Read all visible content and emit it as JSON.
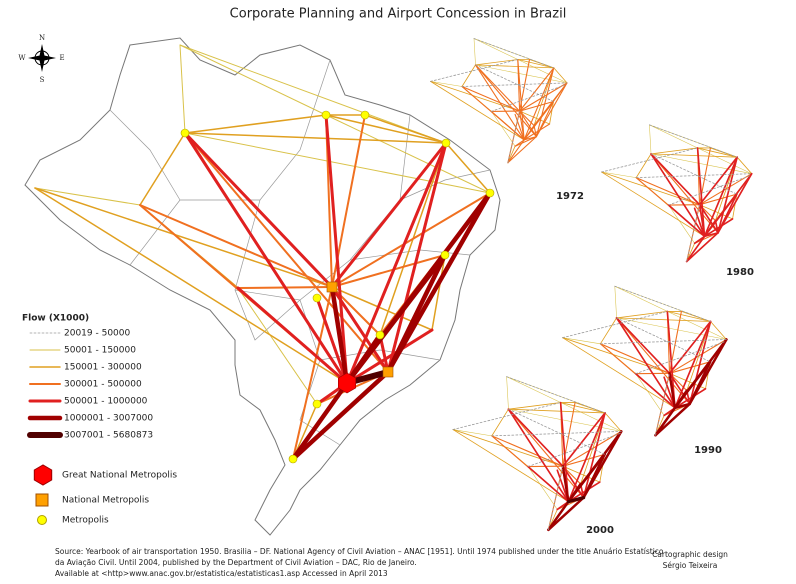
{
  "title": "Corporate Planning and Airport Concession in Brazil",
  "compass": {
    "north": "N",
    "south": "S",
    "east": "E",
    "west": "W"
  },
  "legend": {
    "title": "Flow (X1000)",
    "flows": [
      {
        "label": "20019 - 50000",
        "color": "#9a9a9a"
      },
      {
        "label": "50001 - 150000",
        "color": "#d9c24a"
      },
      {
        "label": "150001 - 300000",
        "color": "#e0a020"
      },
      {
        "label": "300001 - 500000",
        "color": "#f07020"
      },
      {
        "label": "500001 - 1000000",
        "color": "#e02020"
      },
      {
        "label": "1000001 - 3007000",
        "color": "#a00000"
      },
      {
        "label": "3007001 - 5680873",
        "color": "#500000"
      }
    ],
    "symbols": [
      {
        "label": "Great National Metropolis",
        "color": "#ff0000"
      },
      {
        "label": "National Metropolis",
        "color": "#ffa000"
      },
      {
        "label": "Metropolis",
        "color": "#ffff00"
      }
    ]
  },
  "insets": [
    "1972",
    "1980",
    "1990",
    "2000"
  ],
  "source": [
    "Source: Yearbook of air transportation 1950. Brasilia – DF. National Agency of Civil Aviation – ANAC [1951]. Until 1974 published under the title Anuário Estatístico",
    "da Aviação Civil. Until 2004, published by the Department of Civil Aviation – DAC, Rio de Janeiro.",
    "Available at <http>www.anac.gov.br/estatistica/estatisticas1.asp Accessed in April 2013"
  ],
  "credit": [
    "Cartographic design",
    "Sérgio Teixeira"
  ]
}
